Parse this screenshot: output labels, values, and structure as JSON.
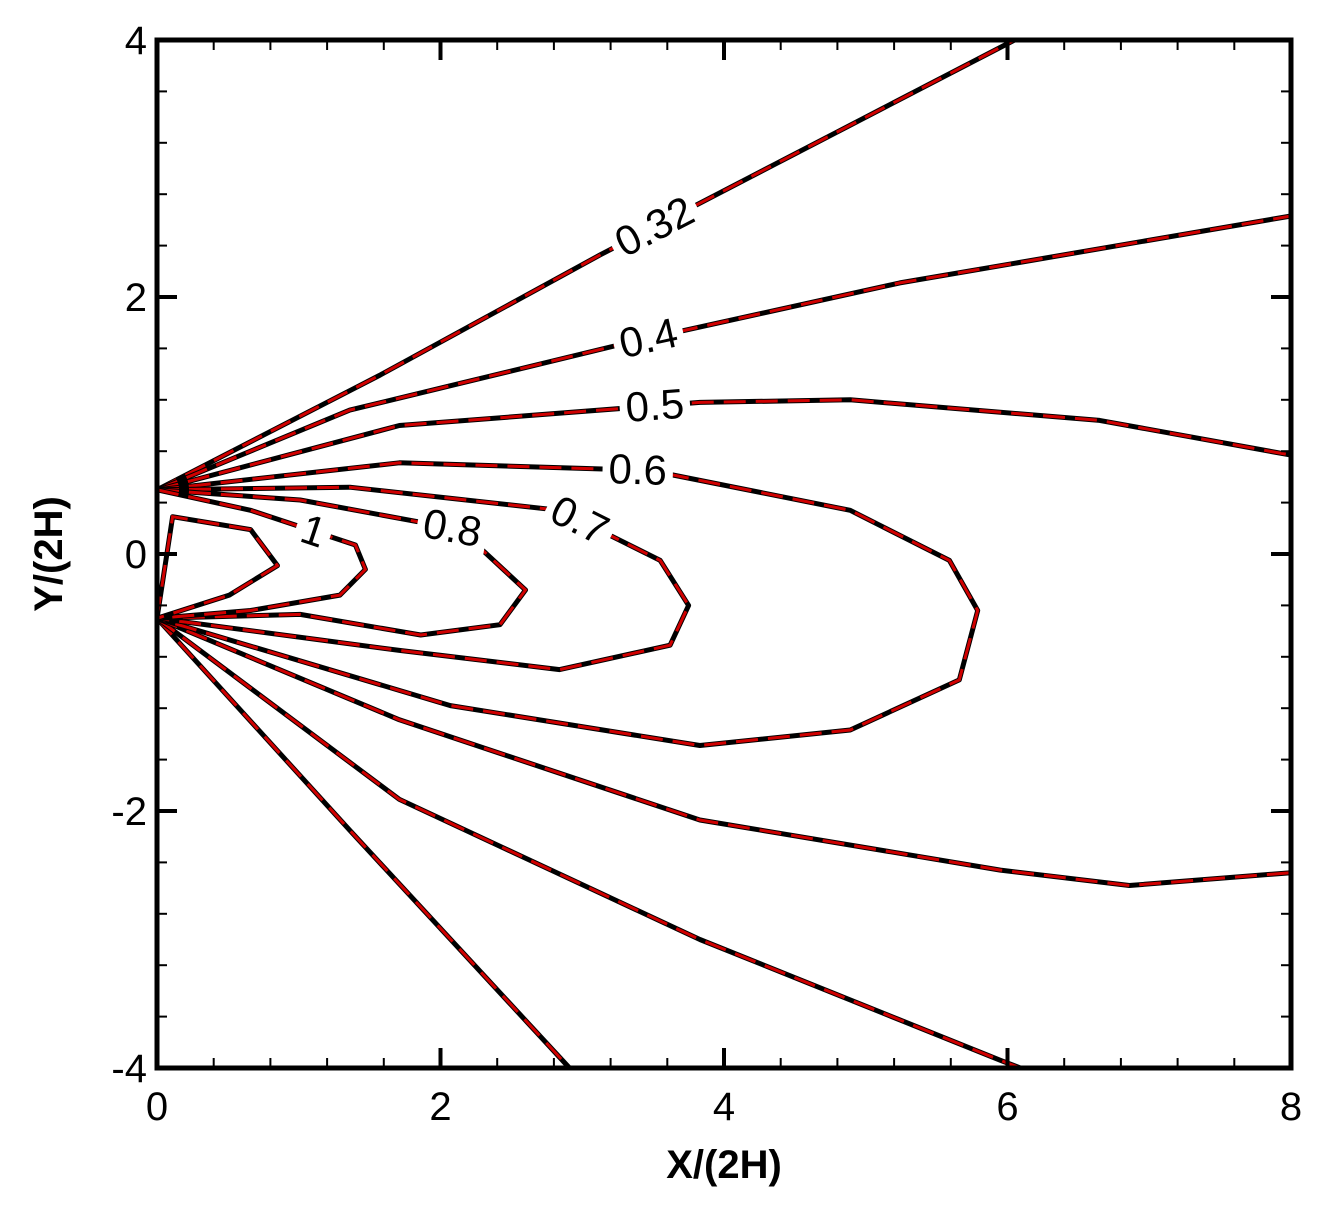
{
  "chart_data": {
    "type": "contour",
    "xlabel": "X/(2H)",
    "ylabel": "Y/(2H)",
    "xlim": [
      0,
      8
    ],
    "ylim": [
      -4,
      4
    ],
    "xticks": [
      0,
      2,
      4,
      6,
      8
    ],
    "yticks": [
      -4,
      -2,
      0,
      2,
      4
    ],
    "colors": [
      "#000000",
      "#d00000"
    ],
    "series": [
      {
        "name": "0.32",
        "x": [
          0,
          1.57,
          3.13,
          6.05,
          null,
          0,
          1.36,
          2.91
        ],
        "y": [
          0.5,
          1.39,
          2.33,
          4,
          null,
          -0.5,
          -2.15,
          -4
        ]
      },
      {
        "name": "0.4",
        "x": [
          0,
          1.36,
          3.27,
          5.24,
          8,
          null,
          0,
          1.71,
          3.83,
          5.95,
          6.09
        ],
        "y": [
          0.5,
          1.12,
          1.63,
          2.11,
          2.63,
          null,
          -0.5,
          -1.91,
          -3.0,
          -3.94,
          -4
        ]
      },
      {
        "name": "0.5",
        "x": [
          0,
          1.71,
          3.83,
          4.89,
          6.65,
          8,
          null,
          0,
          1.71,
          3.83,
          5.95,
          6.86,
          8
        ],
        "y": [
          0.5,
          1.0,
          1.18,
          1.2,
          1.04,
          0.77,
          null,
          -0.5,
          -1.29,
          -2.07,
          -2.46,
          -2.58,
          -2.48
        ]
      },
      {
        "name": "0.6",
        "x": [
          0,
          1.71,
          3.48,
          4.89,
          5.59,
          5.79,
          5.66,
          4.89,
          3.83,
          2.07,
          0
        ],
        "y": [
          0.5,
          0.71,
          0.65,
          0.34,
          -0.05,
          -0.44,
          -0.98,
          -1.37,
          -1.49,
          -1.18,
          -0.5
        ]
      },
      {
        "name": "0.7",
        "x": [
          0,
          1.36,
          2.84,
          3.55,
          3.75,
          3.62,
          2.84,
          1.71,
          0
        ],
        "y": [
          0.5,
          0.52,
          0.34,
          -0.05,
          -0.4,
          -0.71,
          -0.9,
          -0.75,
          -0.5
        ]
      },
      {
        "name": "0.8",
        "x": [
          0,
          1.01,
          2.14,
          2.6,
          2.42,
          1.86,
          1.01,
          0
        ],
        "y": [
          0.5,
          0.42,
          0.19,
          -0.28,
          -0.55,
          -0.63,
          -0.47,
          -0.5
        ]
      },
      {
        "name": "1",
        "x": [
          0,
          0.66,
          1.4,
          1.47,
          1.29,
          0.66,
          0
        ],
        "y": [
          0.5,
          0.34,
          0.07,
          -0.12,
          -0.32,
          -0.44,
          -0.5
        ]
      },
      {
        "x": [
          0,
          0.11,
          0.66,
          0.85,
          0.51,
          0
        ],
        "y": [
          -0.5,
          0.29,
          0.19,
          -0.09,
          -0.32,
          -0.5
        ]
      }
    ]
  }
}
